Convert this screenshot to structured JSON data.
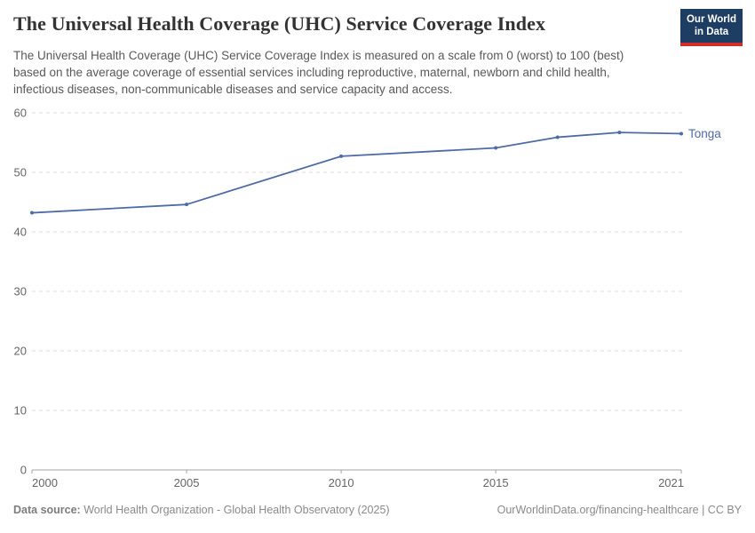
{
  "header": {
    "title": "The Universal Health Coverage (UHC) Service Coverage Index",
    "subtitle": "The Universal Health Coverage (UHC) Service Coverage Index is measured on a scale from 0 (worst) to 100 (best) based on the average coverage of essential services including reproductive, maternal, newborn and child health, infectious diseases, non-communicable diseases and service capacity and access.",
    "logo": {
      "line1": "Our World",
      "line2": "in Data",
      "bg_color": "#1d3d63",
      "stripe_color": "#cf2f28"
    }
  },
  "chart_data": {
    "type": "line",
    "title": "The Universal Health Coverage (UHC) Service Coverage Index",
    "xlabel": "",
    "ylabel": "",
    "xlim": [
      2000,
      2021
    ],
    "ylim": [
      0,
      60
    ],
    "x_ticks": [
      2000,
      2005,
      2010,
      2015,
      2021
    ],
    "y_ticks": [
      0,
      10,
      20,
      30,
      40,
      50,
      60
    ],
    "grid": "horizontal-dashed",
    "legend_position": "end-of-line-label",
    "series": [
      {
        "name": "Tonga",
        "color": "#4e6ba5",
        "x": [
          2000,
          2005,
          2010,
          2015,
          2017,
          2019,
          2021
        ],
        "values": [
          43.2,
          44.6,
          52.7,
          54.1,
          55.9,
          56.7,
          56.5
        ]
      }
    ]
  },
  "footer": {
    "source_label": "Data source:",
    "source_text": " World Health Organization - Global Health Observatory (2025)",
    "right_text": "OurWorldinData.org/financing-healthcare | CC BY"
  }
}
